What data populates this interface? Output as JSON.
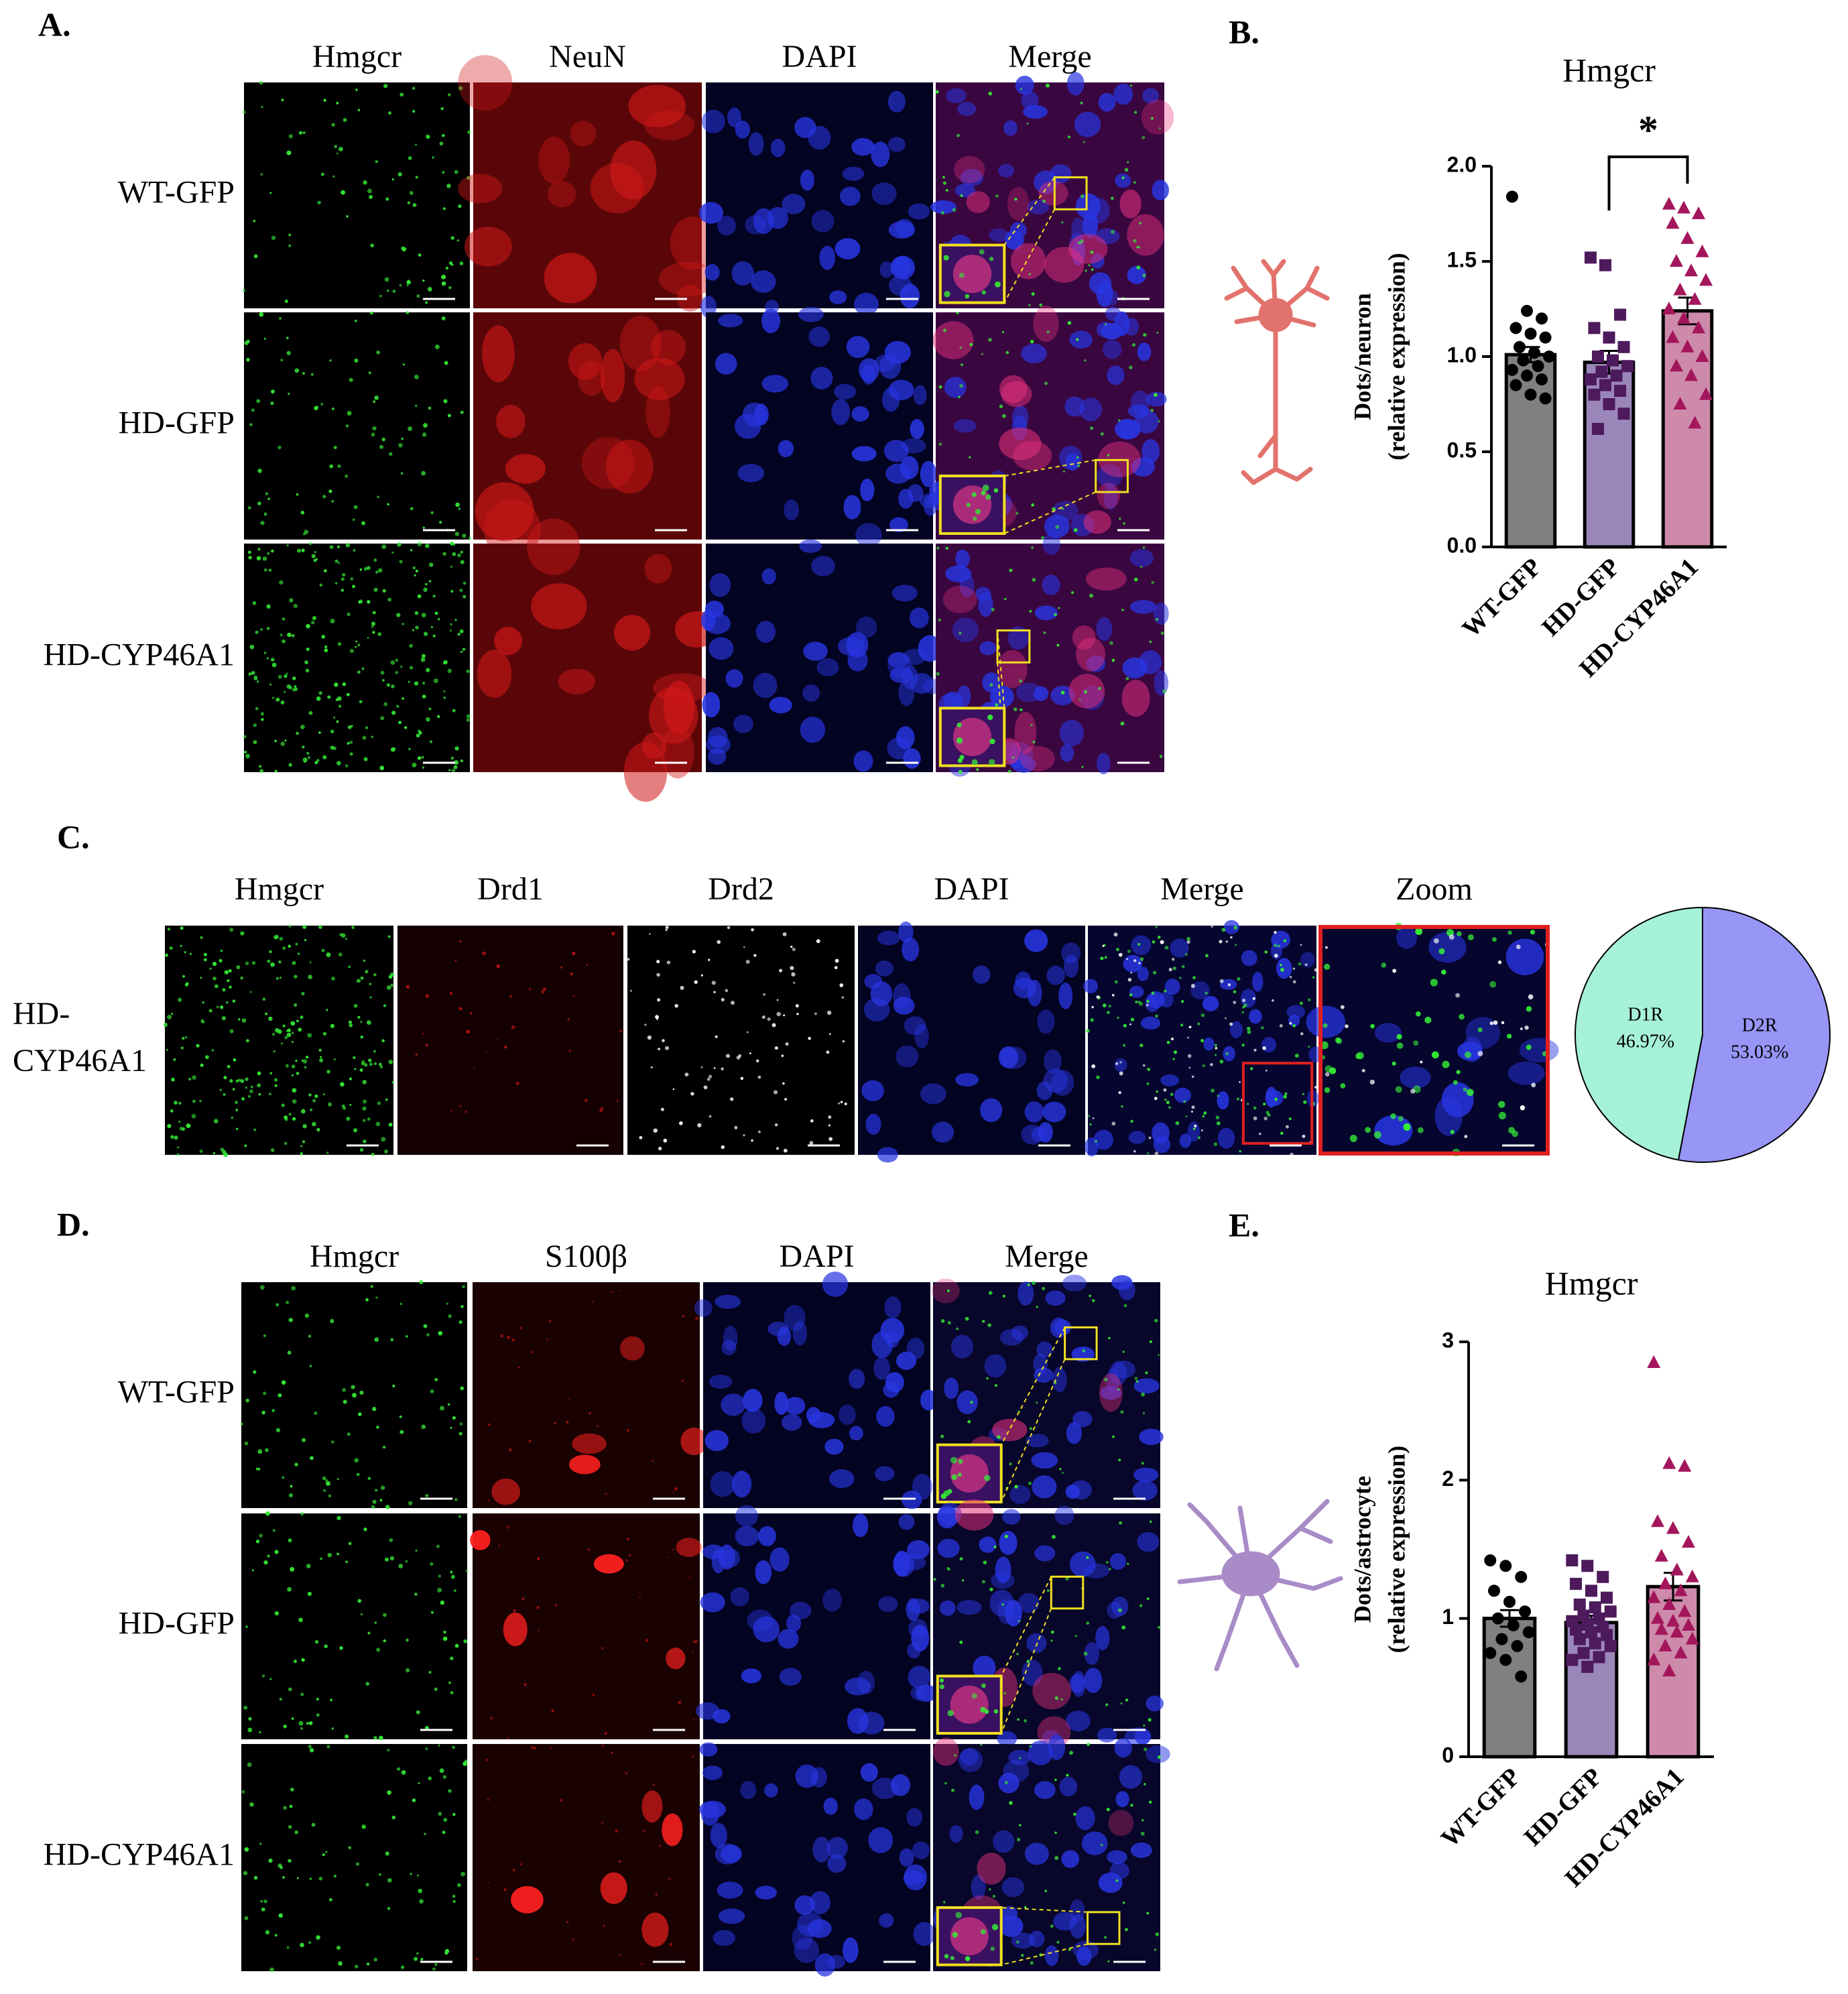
{
  "panels": {
    "A": {
      "label": "A.",
      "columns": [
        "Hmgcr",
        "NeuN",
        "DAPI",
        "Merge"
      ],
      "rows": [
        "WT-GFP",
        "HD-GFP",
        "HD-CYP46A1"
      ]
    },
    "C": {
      "label": "C.",
      "columns": [
        "Hmgcr",
        "Drd1",
        "Drd2",
        "DAPI",
        "Merge",
        "Zoom"
      ],
      "rows": [
        [
          "HD-",
          "CYP46A1"
        ]
      ]
    },
    "D": {
      "label": "D.",
      "columns": [
        "Hmgcr",
        "S100β",
        "DAPI",
        "Merge"
      ],
      "rows": [
        "WT-GFP",
        "HD-GFP",
        "HD-CYP46A1"
      ]
    }
  },
  "chart_data": [
    {
      "type": "bar",
      "panel_label": "B.",
      "title": "Hmgcr",
      "y_label": [
        "Dots/neuron",
        "(relative expression)"
      ],
      "categories": [
        "WT-GFP",
        "HD-GFP",
        "HD-CYP46A1"
      ],
      "values": [
        1.01,
        0.97,
        1.24
      ],
      "errors": [
        0.04,
        0.06,
        0.07
      ],
      "points": [
        [
          1.84,
          1.24,
          1.2,
          1.15,
          1.12,
          1.1,
          1.05,
          1.02,
          1.0,
          0.98,
          0.95,
          0.93,
          0.9,
          0.88,
          0.85,
          0.8,
          0.78
        ],
        [
          1.52,
          1.48,
          1.22,
          1.15,
          1.1,
          1.05,
          1.0,
          0.98,
          0.95,
          0.92,
          0.9,
          0.88,
          0.85,
          0.82,
          0.8,
          0.75,
          0.7,
          0.62
        ],
        [
          1.8,
          1.78,
          1.75,
          1.7,
          1.62,
          1.55,
          1.5,
          1.45,
          1.4,
          1.35,
          1.3,
          1.25,
          1.2,
          1.15,
          1.1,
          1.05,
          1.0,
          0.95,
          0.9,
          0.8,
          0.75,
          0.65
        ]
      ],
      "colors": [
        "#808080",
        "#9b86b9",
        "#cd8aab"
      ],
      "point_colors": [
        "#000000",
        "#4d1a5c",
        "#a3165c"
      ],
      "markers": [
        "circle",
        "square",
        "triangle"
      ],
      "ylim": [
        0,
        2
      ],
      "yticks": [
        {
          "value": 0,
          "label": "0.0"
        },
        {
          "value": 0.5,
          "label": "0.5"
        },
        {
          "value": 1,
          "label": "1.0"
        },
        {
          "value": 1.5,
          "label": "1.5"
        },
        {
          "value": 2,
          "label": "2.0"
        }
      ],
      "annotations": [
        {
          "text": "*",
          "between": [
            1,
            2
          ]
        }
      ]
    },
    {
      "type": "pie",
      "categories": [
        "D1R",
        "D2R"
      ],
      "values": [
        46.97,
        53.03
      ],
      "value_labels": [
        "46.97%",
        "53.03%"
      ],
      "colors": [
        "#a6f2d6",
        "#9796f7"
      ]
    },
    {
      "type": "bar",
      "panel_label": "E.",
      "title": "Hmgcr",
      "y_label": [
        "Dots/astrocyte",
        "(relative expression)"
      ],
      "categories": [
        "WT-GFP",
        "HD-GFP",
        "HD-CYP46A1"
      ],
      "values": [
        1.0,
        0.97,
        1.23
      ],
      "errors": [
        0.06,
        0.05,
        0.1
      ],
      "points": [
        [
          1.42,
          1.38,
          1.3,
          1.2,
          1.12,
          1.05,
          1.0,
          0.95,
          0.9,
          0.85,
          0.8,
          0.75,
          0.7,
          0.58
        ],
        [
          1.42,
          1.38,
          1.3,
          1.25,
          1.2,
          1.15,
          1.1,
          1.08,
          1.05,
          1.02,
          1.0,
          0.98,
          0.96,
          0.94,
          0.92,
          0.9,
          0.88,
          0.85,
          0.82,
          0.8,
          0.75,
          0.72,
          0.7,
          0.65
        ],
        [
          2.85,
          2.12,
          2.1,
          1.7,
          1.65,
          1.55,
          1.45,
          1.35,
          1.3,
          1.25,
          1.2,
          1.15,
          1.1,
          1.05,
          1.0,
          0.98,
          0.95,
          0.92,
          0.9,
          0.85,
          0.8,
          0.75,
          0.7,
          0.62
        ]
      ],
      "colors": [
        "#808080",
        "#9b86b9",
        "#cd8aab"
      ],
      "point_colors": [
        "#000000",
        "#4d1a5c",
        "#a3165c"
      ],
      "markers": [
        "circle",
        "square",
        "triangle"
      ],
      "ylim": [
        0,
        3
      ],
      "yticks": [
        0,
        1,
        2,
        3
      ],
      "annotations": []
    }
  ]
}
